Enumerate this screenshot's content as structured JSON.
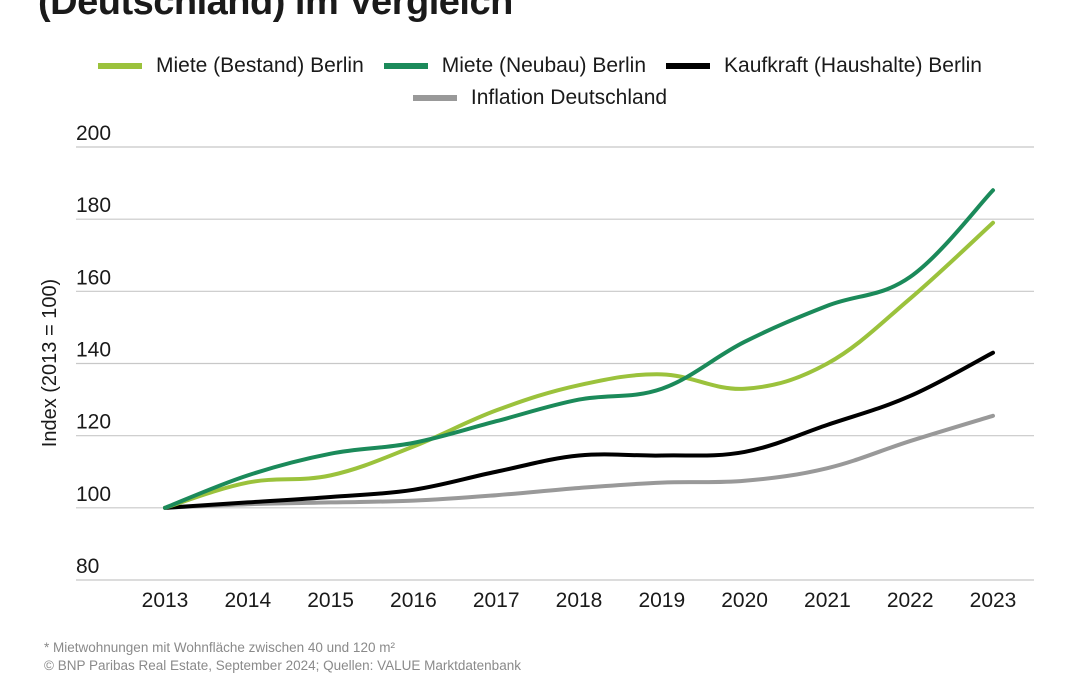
{
  "title": "(Deutschland) im Vergleich",
  "chart_data": {
    "type": "line",
    "categories": [
      "2013",
      "2014",
      "2015",
      "2016",
      "2017",
      "2018",
      "2019",
      "2020",
      "2021",
      "2022",
      "2023"
    ],
    "ylabel": "Index (2013 = 100)",
    "ylim": [
      80,
      200
    ],
    "yticks": [
      80,
      100,
      120,
      140,
      160,
      180,
      200
    ],
    "grid": true,
    "legend_position": "top-center",
    "series": [
      {
        "name": "Miete (Bestand) Berlin",
        "color": "#9bc23c",
        "values": [
          100,
          107,
          109,
          117,
          127,
          134,
          137,
          133,
          140,
          158,
          179
        ]
      },
      {
        "name": "Miete (Neubau) Berlin",
        "color": "#1b8a5a",
        "values": [
          100,
          109,
          115,
          118,
          124,
          130,
          133,
          146,
          156,
          164,
          188
        ]
      },
      {
        "name": "Kaufkraft (Haushalte) Berlin",
        "color": "#000000",
        "values": [
          100,
          101.5,
          103,
          105,
          110,
          114.5,
          114.5,
          115.5,
          123,
          131,
          143
        ]
      },
      {
        "name": "Inflation Deutschland",
        "color": "#999999",
        "values": [
          100,
          101,
          101.5,
          102,
          103.5,
          105.5,
          107,
          107.5,
          111,
          118.5,
          125.5
        ]
      }
    ]
  },
  "footer": {
    "note": "* Mietwohnungen mit Wohnfläche zwischen 40 und 120 m²",
    "source": "© BNP Paribas Real Estate, September 2024; Quellen: VALUE Marktdatenbank"
  }
}
